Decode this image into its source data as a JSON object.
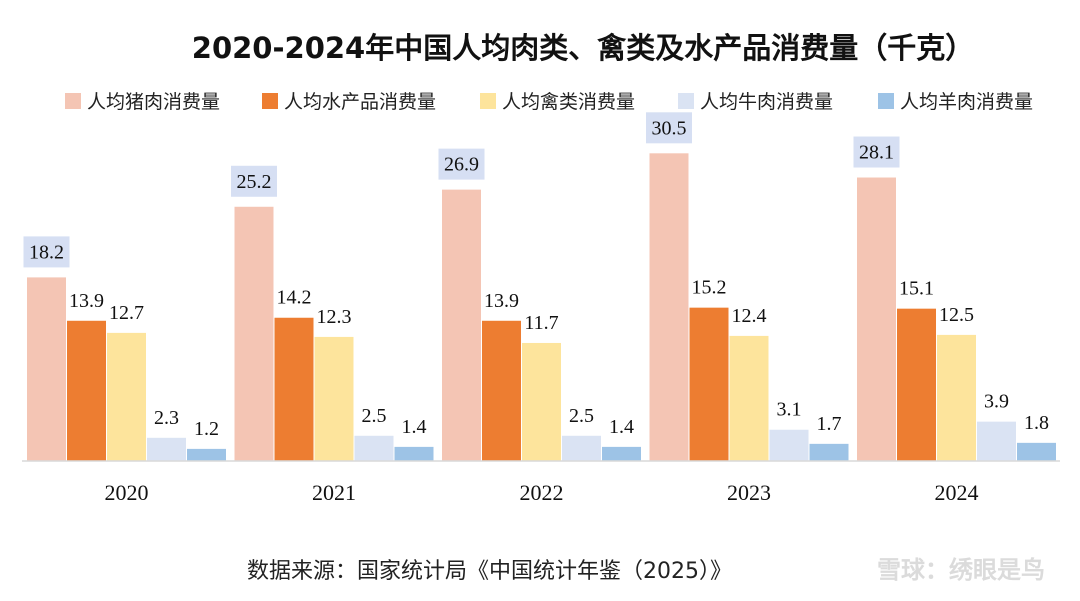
{
  "chart_data": {
    "type": "bar",
    "title": "2020-2024年中国人均肉类、禽类及水产品消费量（千克）",
    "categories": [
      "2020",
      "2021",
      "2022",
      "2023",
      "2024"
    ],
    "series": [
      {
        "name": "人均猪肉消费量",
        "color": "#f4c5b4",
        "values": [
          18.2,
          25.2,
          26.9,
          30.5,
          28.1
        ]
      },
      {
        "name": "人均水产品消费量",
        "color": "#ed7d31",
        "values": [
          13.9,
          14.2,
          13.9,
          15.2,
          15.1
        ]
      },
      {
        "name": "人均禽类消费量",
        "color": "#fde49c",
        "values": [
          12.7,
          12.3,
          11.7,
          12.4,
          12.5
        ]
      },
      {
        "name": "人均牛肉消费量",
        "color": "#dae3f3",
        "values": [
          2.3,
          2.5,
          2.5,
          3.1,
          3.9
        ]
      },
      {
        "name": "人均羊肉消费量",
        "color": "#9dc3e6",
        "values": [
          1.2,
          1.4,
          1.4,
          1.7,
          1.8
        ]
      }
    ],
    "highlight_label_bg": "#d6dff3",
    "ylim": [
      0,
      34
    ],
    "xlabel": "",
    "ylabel": "",
    "legend_position": "top",
    "grid": false
  },
  "source": "数据来源：国家统计局《中国统计年鉴（2025）》",
  "watermark": "雪球：绣眼是鸟"
}
